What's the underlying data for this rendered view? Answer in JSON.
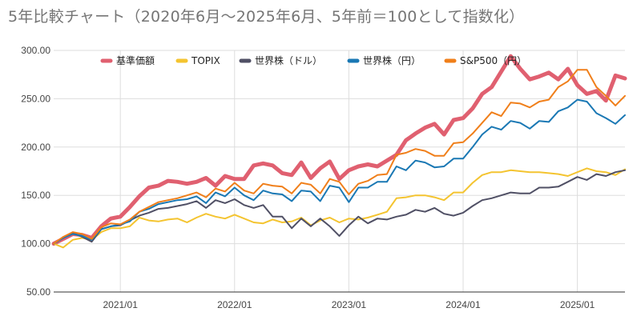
{
  "chart_data": {
    "type": "line",
    "title": "5年比較チャート（2020年6月〜2025年6月、5年前＝100として指数化）",
    "xlabel": "",
    "ylabel": "",
    "ylim": [
      50,
      300
    ],
    "yticks": [
      "50.00",
      "100.00",
      "150.00",
      "200.00",
      "250.00",
      "300.00"
    ],
    "xticks": [
      "2021/01",
      "2022/01",
      "2023/01",
      "2024/01",
      "2025/01"
    ],
    "grid": true,
    "legend_position": "top",
    "x": [
      "2020/06",
      "2020/07",
      "2020/08",
      "2020/09",
      "2020/10",
      "2020/11",
      "2020/12",
      "2021/01",
      "2021/02",
      "2021/03",
      "2021/04",
      "2021/05",
      "2021/06",
      "2021/07",
      "2021/08",
      "2021/09",
      "2021/10",
      "2021/11",
      "2021/12",
      "2022/01",
      "2022/02",
      "2022/03",
      "2022/04",
      "2022/05",
      "2022/06",
      "2022/07",
      "2022/08",
      "2022/09",
      "2022/10",
      "2022/11",
      "2022/12",
      "2023/01",
      "2023/02",
      "2023/03",
      "2023/04",
      "2023/05",
      "2023/06",
      "2023/07",
      "2023/08",
      "2023/09",
      "2023/10",
      "2023/11",
      "2023/12",
      "2024/01",
      "2024/02",
      "2024/03",
      "2024/04",
      "2024/05",
      "2024/06",
      "2024/07",
      "2024/08",
      "2024/09",
      "2024/10",
      "2024/11",
      "2024/12",
      "2025/01",
      "2025/02",
      "2025/03",
      "2025/04",
      "2025/05",
      "2025/06"
    ],
    "series": [
      {
        "name": "基準価額",
        "color": "#e06070",
        "width": 5,
        "values": [
          100,
          105,
          110,
          109,
          106,
          118,
          126,
          128,
          138,
          149,
          158,
          160,
          165,
          164,
          162,
          164,
          168,
          160,
          170,
          167,
          167,
          181,
          183,
          181,
          173,
          171,
          184,
          168,
          178,
          185,
          167,
          176,
          180,
          182,
          180,
          186,
          192,
          207,
          214,
          220,
          224,
          213,
          228,
          230,
          240,
          255,
          262,
          278,
          294,
          281,
          270,
          273,
          277,
          270,
          281,
          264,
          255,
          258,
          248,
          274,
          271
        ]
      },
      {
        "name": "TOPIX",
        "color": "#f4c430",
        "width": 2,
        "values": [
          100,
          96,
          104,
          106,
          104,
          112,
          116,
          116,
          118,
          127,
          124,
          123,
          125,
          126,
          122,
          127,
          131,
          128,
          126,
          130,
          126,
          122,
          121,
          125,
          122,
          123,
          127,
          119,
          124,
          127,
          122,
          126,
          125,
          127,
          130,
          133,
          147,
          148,
          150,
          150,
          148,
          145,
          153,
          153,
          163,
          171,
          174,
          174,
          176,
          175,
          174,
          174,
          173,
          172,
          170,
          174,
          178,
          175,
          174,
          171,
          177
        ]
      },
      {
        "name": "世界株（ドル）",
        "color": "#505065",
        "width": 2,
        "values": [
          100,
          106,
          111,
          107,
          102,
          115,
          118,
          119,
          124,
          129,
          132,
          136,
          137,
          139,
          141,
          144,
          137,
          145,
          142,
          146,
          140,
          137,
          140,
          128,
          128,
          116,
          126,
          118,
          126,
          118,
          108,
          119,
          128,
          121,
          126,
          125,
          128,
          130,
          135,
          133,
          137,
          131,
          129,
          132,
          139,
          145,
          147,
          150,
          153,
          152,
          152,
          158,
          158,
          159,
          164,
          169,
          166,
          172,
          170,
          174,
          176
        ]
      },
      {
        "name": "世界株（円）",
        "color": "#1a78b4",
        "width": 2,
        "values": [
          100,
          106,
          110,
          108,
          104,
          115,
          118,
          120,
          123,
          133,
          136,
          141,
          143,
          145,
          146,
          149,
          142,
          153,
          149,
          158,
          150,
          145,
          155,
          152,
          151,
          144,
          155,
          154,
          144,
          160,
          158,
          143,
          158,
          158,
          164,
          164,
          180,
          176,
          186,
          184,
          179,
          180,
          188,
          188,
          200,
          213,
          221,
          218,
          227,
          225,
          219,
          227,
          226,
          237,
          241,
          249,
          247,
          235,
          230,
          224,
          233
        ]
      },
      {
        "name": "S&P500（円）",
        "color": "#f07f1a",
        "width": 2,
        "values": [
          100,
          107,
          112,
          110,
          105,
          117,
          121,
          120,
          125,
          133,
          138,
          143,
          145,
          147,
          150,
          153,
          148,
          157,
          154,
          163,
          155,
          152,
          162,
          160,
          159,
          152,
          163,
          161,
          152,
          167,
          164,
          151,
          162,
          165,
          171,
          172,
          192,
          194,
          198,
          196,
          191,
          191,
          204,
          205,
          214,
          225,
          236,
          232,
          246,
          245,
          241,
          247,
          249,
          262,
          268,
          280,
          280,
          262,
          253,
          243,
          253
        ]
      }
    ]
  }
}
